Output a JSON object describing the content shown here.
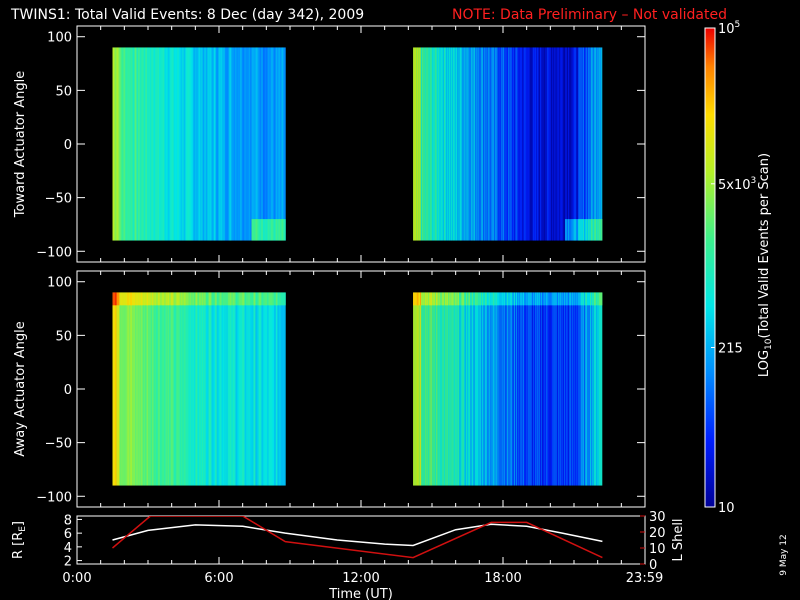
{
  "header": {
    "title": "TWINS1: Total Valid Events:  8 Dec (day 342), 2009",
    "note": "NOTE: Data Preliminary – Not validated"
  },
  "stamp": "9 May 12",
  "colors": {
    "note": "#ff2020",
    "lshell": "#d01010",
    "radius": "#ffffff"
  },
  "chart_data": [
    {
      "type": "heatmap",
      "name_key": "toward",
      "ylabel": "Toward Actuator Angle",
      "ylim": [
        -110,
        110
      ],
      "yticks": [
        "100",
        "50",
        "0",
        "−50",
        "−100"
      ],
      "x_hours": [
        0,
        24
      ],
      "data_blocks_hours": [
        [
          1.5,
          8.8
        ],
        [
          14.2,
          22.2
        ]
      ],
      "angle_range": [
        -90,
        90
      ],
      "log_counts_profile": "high near block start (~3.3), low (~1.6) in mid-block, bottom-right edge rises"
    },
    {
      "type": "heatmap",
      "name_key": "away",
      "ylabel": "Away Actuator Angle",
      "ylim": [
        -110,
        110
      ],
      "yticks": [
        "100",
        "50",
        "0",
        "−50",
        "−100"
      ],
      "x_hours": [
        0,
        24
      ],
      "data_blocks_hours": [
        [
          1.5,
          8.8
        ],
        [
          14.2,
          22.2
        ]
      ],
      "angle_range": [
        -90,
        90
      ],
      "log_counts_profile": "high near block start (~3.7), top band at +80..+90 elevated"
    },
    {
      "type": "line",
      "ylabel": "R [R",
      "ylabel_sub": "E",
      "ylabel_close": "]",
      "y2label": "L Shell",
      "yticks_left": [
        "8",
        "6",
        "4",
        "2"
      ],
      "yticks_right": [
        "30",
        "20",
        "10",
        "0"
      ],
      "ylim_left": [
        1.5,
        8.5
      ],
      "ylim_right": [
        0,
        30
      ],
      "xlabel": "Time (UT)",
      "xticks": [
        "0:00",
        "6:00",
        "12:00",
        "18:00",
        "23:59"
      ],
      "xtick_hours": [
        0,
        6,
        12,
        18,
        23.98
      ],
      "series": [
        {
          "key": "R",
          "axis": "left",
          "x": [
            1.5,
            3.0,
            5.0,
            7.0,
            8.8,
            11.0,
            13.0,
            14.2,
            16.0,
            17.5,
            19.0,
            20.5,
            22.2
          ],
          "y": [
            5.0,
            6.4,
            7.2,
            7.0,
            6.0,
            5.0,
            4.4,
            4.2,
            6.5,
            7.3,
            7.0,
            6.0,
            4.8
          ]
        },
        {
          "key": "L",
          "axis": "right",
          "x": [
            1.5,
            3.1,
            7.0,
            8.8,
            14.2,
            17.5,
            19.0,
            22.2
          ],
          "y": [
            10,
            30,
            30,
            14,
            4,
            26,
            26,
            4
          ]
        }
      ]
    },
    {
      "type": "colorbar",
      "label": "LOG",
      "label_sub": "10",
      "label_rest": "(Total Valid Events per Scan)",
      "ticks": [
        {
          "log10": 5.0,
          "base": "10",
          "exp": "5"
        },
        {
          "log10": 3.699,
          "base": "5x10",
          "exp": "3"
        },
        {
          "log10": 2.332,
          "base": "215",
          "exp": ""
        },
        {
          "log10": 1.0,
          "base": "10",
          "exp": ""
        }
      ],
      "range_log10": [
        1.0,
        5.0
      ]
    }
  ]
}
